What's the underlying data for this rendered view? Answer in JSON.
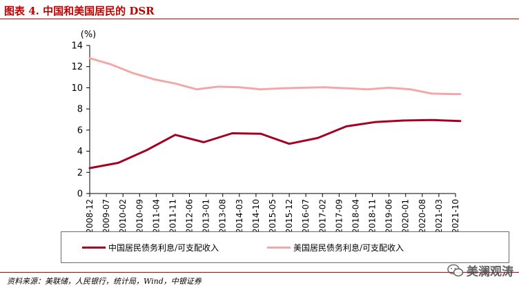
{
  "title": "图表 4. 中国和美国居民的 DSR",
  "chart_data": {
    "type": "line",
    "unit_label": "(%)",
    "ylim": [
      0,
      14
    ],
    "yticks": [
      0,
      2,
      4,
      6,
      8,
      10,
      12,
      14
    ],
    "grid": false,
    "legend_position": "bottom",
    "categories": [
      "2008-12",
      "2009-07",
      "2010-02",
      "2010-09",
      "2011-04",
      "2011-11",
      "2012-06",
      "2013-01",
      "2013-08",
      "2014-03",
      "2014-10",
      "2015-05",
      "2015-12",
      "2016-07",
      "2017-02",
      "2017-09",
      "2018-04",
      "2018-11",
      "2019-06",
      "2020-01",
      "2020-08",
      "2021-03",
      "2021-10"
    ],
    "series": [
      {
        "name": "中国居民债务利息/可支配收入",
        "color": "#a50021",
        "x": [
          "2008-12",
          "2009-12",
          "2010-12",
          "2011-12",
          "2012-12",
          "2013-12",
          "2014-12",
          "2015-12",
          "2016-12",
          "2017-12",
          "2018-12",
          "2019-12",
          "2020-12",
          "2021-12"
        ],
        "values": [
          2.4,
          2.9,
          4.1,
          5.55,
          4.85,
          5.7,
          5.65,
          4.7,
          5.25,
          6.35,
          6.75,
          6.9,
          6.95,
          6.85
        ]
      },
      {
        "name": "美国居民债务利息/可支配收入",
        "color": "#f2a8a8",
        "x": [
          "2008-12",
          "2009-09",
          "2010-06",
          "2011-03",
          "2011-12",
          "2012-09",
          "2013-06",
          "2014-03",
          "2014-12",
          "2015-09",
          "2016-06",
          "2017-03",
          "2017-12",
          "2018-09",
          "2019-06",
          "2020-03",
          "2020-12",
          "2021-09",
          "2021-12"
        ],
        "values": [
          12.8,
          12.2,
          11.4,
          10.8,
          10.4,
          9.85,
          10.1,
          10.05,
          9.85,
          9.95,
          10.0,
          10.05,
          9.95,
          9.85,
          10.0,
          9.85,
          9.45,
          9.4,
          9.4
        ]
      }
    ]
  },
  "source": "资料来源：美联储，人民银行，统计局，Wind，中银证券",
  "watermark": "美澜观涛"
}
